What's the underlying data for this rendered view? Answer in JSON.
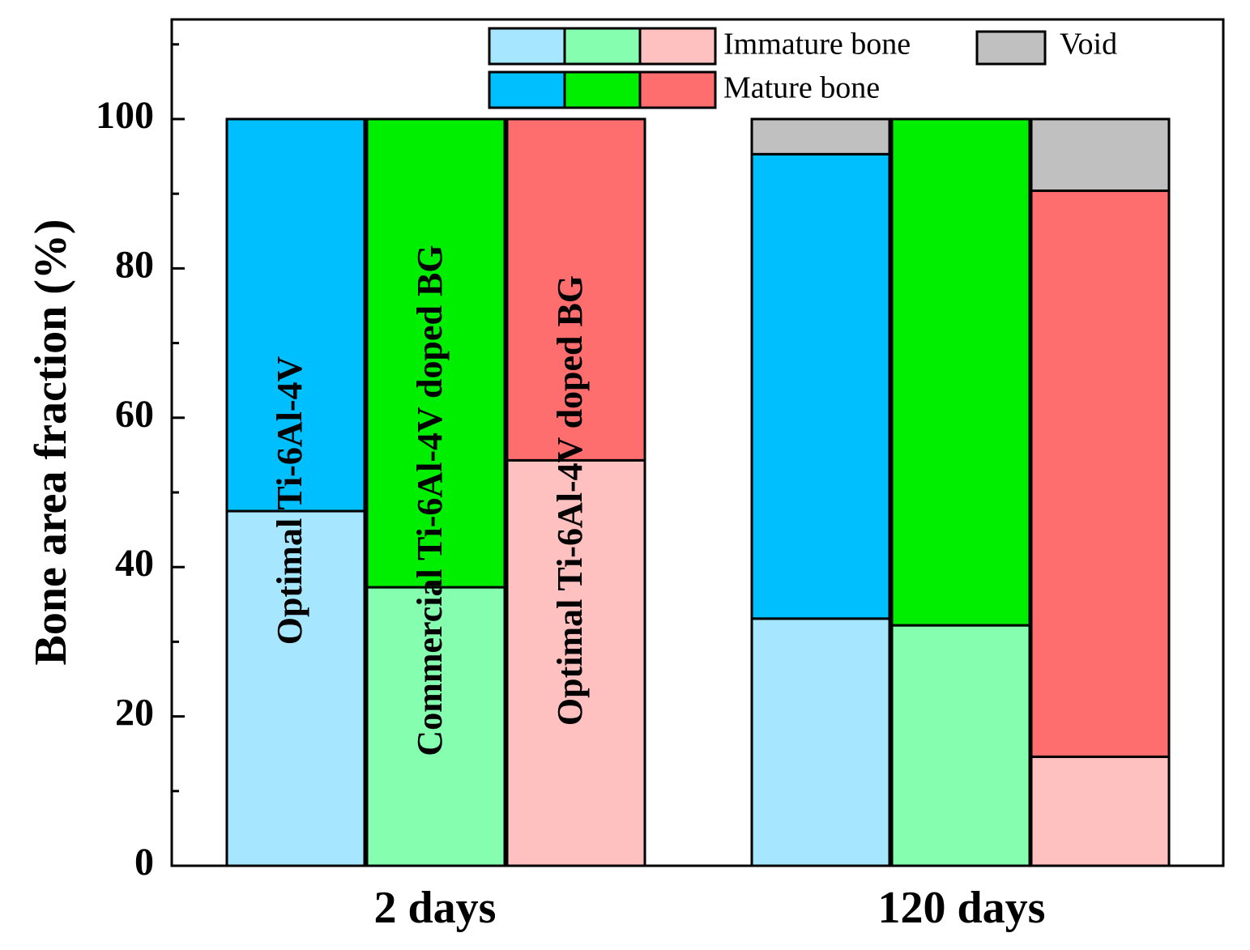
{
  "chart_data": {
    "type": "bar",
    "stacked": true,
    "ylabel": "Bone area fraction (%)",
    "xlabel": "",
    "ylim": [
      0,
      100
    ],
    "yticks": [
      0,
      20,
      40,
      60,
      80,
      100
    ],
    "groups": [
      "2 days",
      "120 days"
    ],
    "series": [
      {
        "name": "Immature bone",
        "segment": "immature"
      },
      {
        "name": "Mature bone",
        "segment": "mature"
      },
      {
        "name": "Void",
        "segment": "void"
      }
    ],
    "bars": [
      {
        "group": "2 days",
        "sample": "Optimal Ti-6Al-4V",
        "label": "Optimal Ti-6Al-4V",
        "immature": 47.5,
        "mature": 52.5,
        "void": 0,
        "colors": {
          "immature": "#A6E6FF",
          "mature": "#00BFFF"
        }
      },
      {
        "group": "2 days",
        "sample": "Commercial Ti-6Al-4V doped BG",
        "label": "Commercial Ti-6Al-4V doped BG",
        "immature": 37.3,
        "mature": 62.7,
        "void": 0,
        "colors": {
          "immature": "#85FFAF",
          "mature": "#00EE00"
        }
      },
      {
        "group": "2 days",
        "sample": "Optimal Ti-6Al-4V doped BG",
        "label": "Optimal Ti-6Al-4V doped BG",
        "immature": 54.3,
        "mature": 45.7,
        "void": 0,
        "colors": {
          "immature": "#FFC0C0",
          "mature": "#FF6E6E"
        }
      },
      {
        "group": "120 days",
        "sample": "Optimal Ti-6Al-4V",
        "label": "",
        "immature": 33.1,
        "mature": 62.2,
        "void": 4.7,
        "colors": {
          "immature": "#A6E6FF",
          "mature": "#00BFFF"
        }
      },
      {
        "group": "120 days",
        "sample": "Commercial Ti-6Al-4V doped BG",
        "label": "",
        "immature": 32.2,
        "mature": 67.8,
        "void": 0,
        "colors": {
          "immature": "#85FFAF",
          "mature": "#00EE00"
        }
      },
      {
        "group": "120 days",
        "sample": "Optimal Ti-6Al-4V doped BG",
        "label": "",
        "immature": 14.6,
        "mature": 75.8,
        "void": 9.6,
        "colors": {
          "immature": "#FFC0C0",
          "mature": "#FF6E6E"
        }
      }
    ],
    "legend": {
      "placement": "top",
      "immature_label": "Immature bone",
      "mature_label": "Mature bone",
      "void_label": "Void",
      "immature_colors": [
        "#A6E6FF",
        "#85FFAF",
        "#FFC0C0"
      ],
      "mature_colors": [
        "#00BFFF",
        "#00EE00",
        "#FF6E6E"
      ],
      "void_color": "#C0C0C0"
    },
    "grid": false
  }
}
